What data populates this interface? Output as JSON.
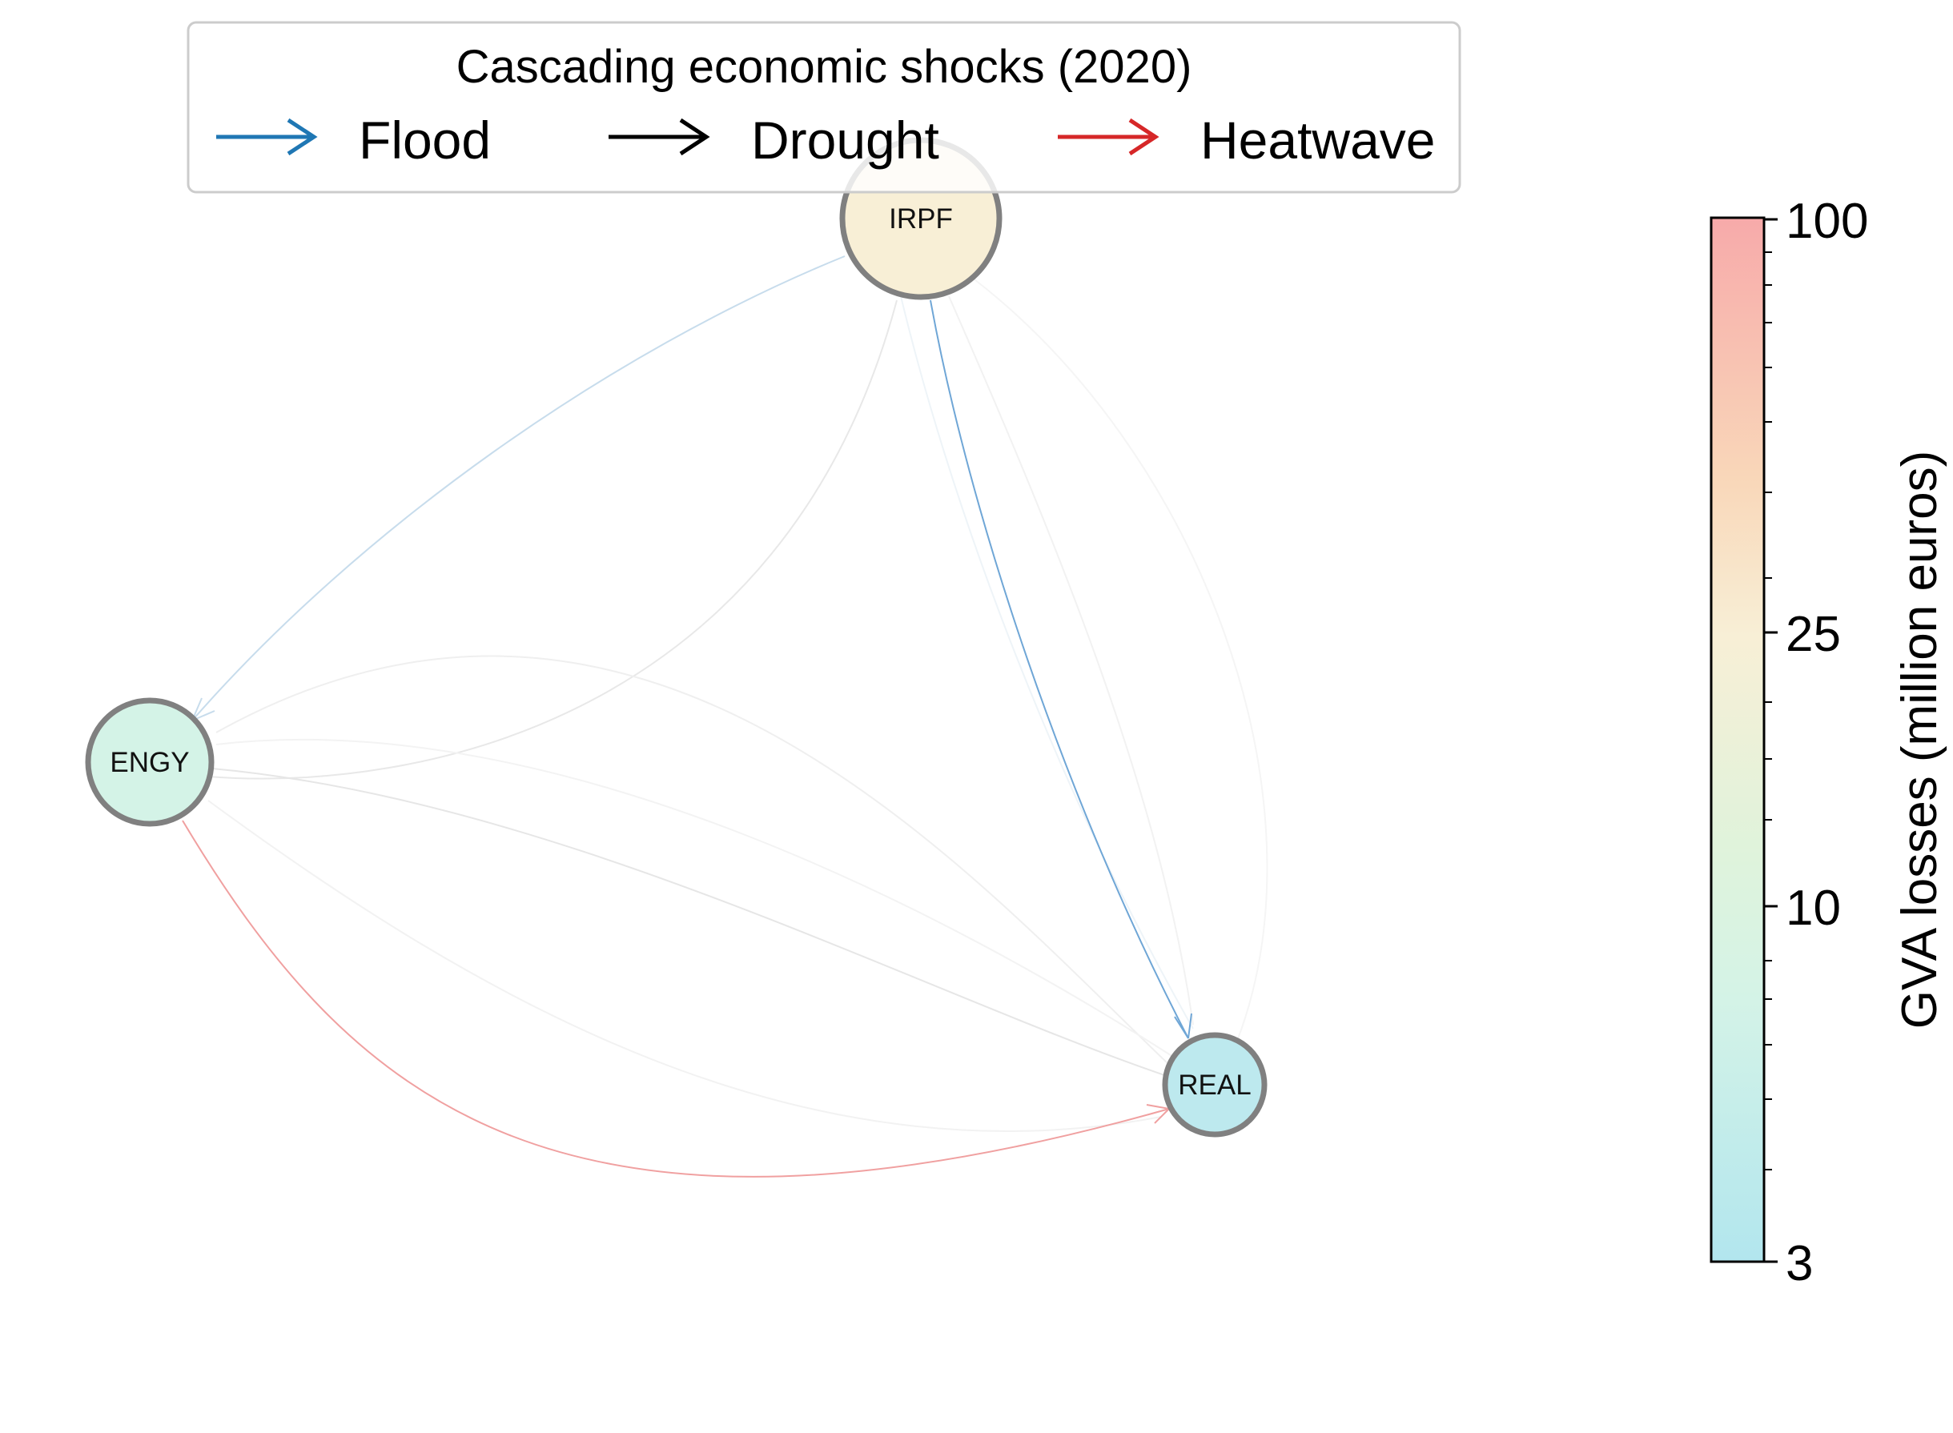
{
  "legend": {
    "title": "Cascading economic shocks (2020)",
    "entries": [
      {
        "label": "Flood",
        "color": "#1f77b4"
      },
      {
        "label": "Drought",
        "color": "#000000"
      },
      {
        "label": "Heatwave",
        "color": "#d62728"
      }
    ]
  },
  "nodes": [
    {
      "id": "IRPF",
      "label": "IRPF",
      "gva_loss": 28,
      "fill": "#f8efd6"
    },
    {
      "id": "ENGY",
      "label": "ENGY",
      "gva_loss": 10,
      "fill": "#d4f3e7"
    },
    {
      "id": "REAL",
      "label": "REAL",
      "gva_loss": 6,
      "fill": "#bde9ee"
    }
  ],
  "edges": [
    {
      "from": "IRPF",
      "to": "ENGY",
      "hazard": "Flood",
      "weight": "faint"
    },
    {
      "from": "IRPF",
      "to": "REAL",
      "hazard": "Flood",
      "weight": "strong"
    },
    {
      "from": "ENGY",
      "to": "REAL",
      "hazard": "Heatwave",
      "weight": "medium"
    },
    {
      "from": "ENGY",
      "to": "IRPF",
      "hazard": "Drought",
      "weight": "faint"
    },
    {
      "from": "ENGY",
      "to": "REAL",
      "hazard": "Drought",
      "weight": "faint"
    },
    {
      "from": "REAL",
      "to": "ENGY",
      "hazard": "Drought",
      "weight": "faint"
    },
    {
      "from": "REAL",
      "to": "IRPF",
      "hazard": "Flood",
      "weight": "faint"
    },
    {
      "from": "IRPF",
      "to": "REAL",
      "hazard": "Drought",
      "weight": "faint"
    }
  ],
  "colorbar": {
    "label": "GVA losses (million euros)",
    "scale": "log",
    "range": [
      3,
      100
    ],
    "ticks": [
      "100",
      "25",
      "10",
      "3"
    ],
    "colors": [
      "#f7aaaa",
      "#f9d7b9",
      "#f8efd6",
      "#e0f3db",
      "#d4f3e7",
      "#b2e6ee"
    ]
  }
}
